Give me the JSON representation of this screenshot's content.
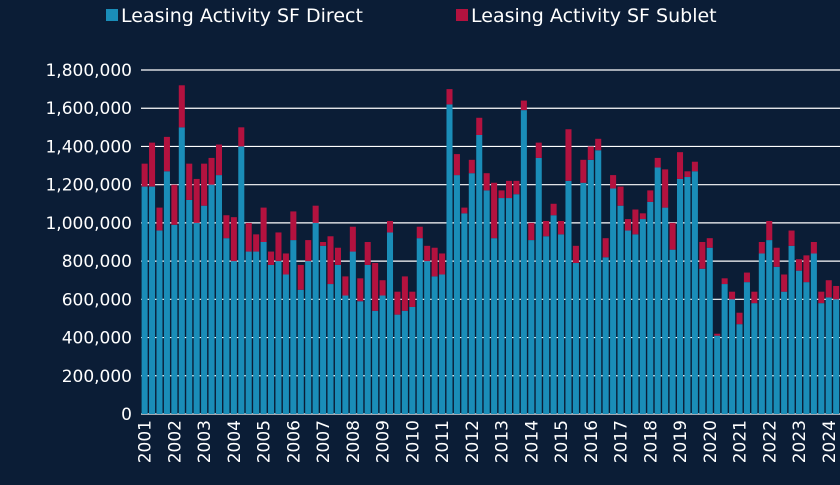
{
  "chart_data": {
    "type": "stacked_bar",
    "categories": [
      "2001",
      null,
      null,
      null,
      "2002",
      null,
      null,
      null,
      "2003",
      null,
      null,
      null,
      "2004",
      null,
      null,
      null,
      "2005",
      null,
      null,
      null,
      "2006",
      null,
      null,
      null,
      "2007",
      null,
      null,
      null,
      "2008",
      null,
      null,
      null,
      "2009",
      null,
      null,
      null,
      "2010",
      null,
      null,
      null,
      "2011",
      null,
      null,
      null,
      "2012",
      null,
      null,
      null,
      "2013",
      null,
      null,
      null,
      "2014",
      null,
      null,
      null,
      "2015",
      null,
      null,
      null,
      "2016",
      null,
      null,
      null,
      "2017",
      null,
      null,
      null,
      "2018",
      null,
      null,
      null,
      "2019",
      null,
      null,
      null,
      "2020",
      null,
      null,
      null,
      "2021",
      null,
      null,
      null,
      "2022",
      null,
      null,
      null,
      "2023",
      null,
      null,
      null,
      "2024",
      null
    ],
    "series": [
      {
        "name": "Leasing Activity SF Direct",
        "color": "#1a8db8",
        "values": [
          1190000,
          1190000,
          960000,
          1270000,
          990000,
          1500000,
          1120000,
          1000000,
          1090000,
          1200000,
          1250000,
          920000,
          800000,
          1400000,
          850000,
          850000,
          900000,
          780000,
          800000,
          730000,
          910000,
          650000,
          800000,
          1000000,
          880000,
          680000,
          780000,
          620000,
          850000,
          590000,
          780000,
          540000,
          620000,
          950000,
          520000,
          540000,
          560000,
          920000,
          800000,
          720000,
          730000,
          1620000,
          1250000,
          1050000,
          1260000,
          1460000,
          1170000,
          920000,
          1130000,
          1130000,
          1150000,
          1590000,
          910000,
          1340000,
          930000,
          1040000,
          940000,
          1220000,
          790000,
          1210000,
          1330000,
          1380000,
          820000,
          1180000,
          1090000,
          960000,
          940000,
          1020000,
          1110000,
          1290000,
          1080000,
          860000,
          1230000,
          1240000,
          1270000,
          760000,
          870000,
          410000,
          680000,
          600000,
          470000,
          690000,
          580000,
          840000,
          910000,
          770000,
          640000,
          880000,
          750000,
          690000,
          840000,
          580000,
          610000,
          600000
        ]
      },
      {
        "name": "Leasing Activity SF Sublet",
        "color": "#b3123f",
        "values": [
          120000,
          230000,
          120000,
          180000,
          210000,
          220000,
          190000,
          230000,
          220000,
          140000,
          160000,
          120000,
          230000,
          100000,
          150000,
          90000,
          180000,
          70000,
          150000,
          110000,
          150000,
          130000,
          110000,
          90000,
          20000,
          250000,
          90000,
          100000,
          130000,
          120000,
          120000,
          250000,
          80000,
          60000,
          120000,
          180000,
          80000,
          60000,
          80000,
          150000,
          110000,
          80000,
          110000,
          30000,
          70000,
          90000,
          90000,
          290000,
          40000,
          90000,
          70000,
          50000,
          90000,
          80000,
          80000,
          60000,
          70000,
          270000,
          90000,
          120000,
          70000,
          60000,
          100000,
          70000,
          100000,
          60000,
          130000,
          30000,
          60000,
          50000,
          200000,
          140000,
          140000,
          30000,
          50000,
          140000,
          50000,
          10000,
          30000,
          40000,
          60000,
          50000,
          60000,
          60000,
          100000,
          100000,
          90000,
          80000,
          60000,
          140000,
          60000,
          60000,
          90000,
          70000
        ]
      }
    ],
    "ylim": [
      0,
      1800000
    ],
    "yticks": [
      0,
      {
        "value": 200000,
        "label": "200,000"
      },
      {
        "value": 400000,
        "label": "400,000"
      },
      {
        "value": 600000,
        "label": "600,000"
      },
      {
        "value": 800000,
        "label": "800,000"
      },
      {
        "value": 1000000,
        "label": "1,000,000"
      },
      {
        "value": 1200000,
        "label": "1,200,000"
      },
      {
        "value": 1400000,
        "label": "1,400,000"
      },
      {
        "value": 1600000,
        "label": "1,600,000"
      },
      {
        "value": 1800000,
        "label": "1,800,000"
      }
    ],
    "grid": true,
    "legend": "top"
  }
}
